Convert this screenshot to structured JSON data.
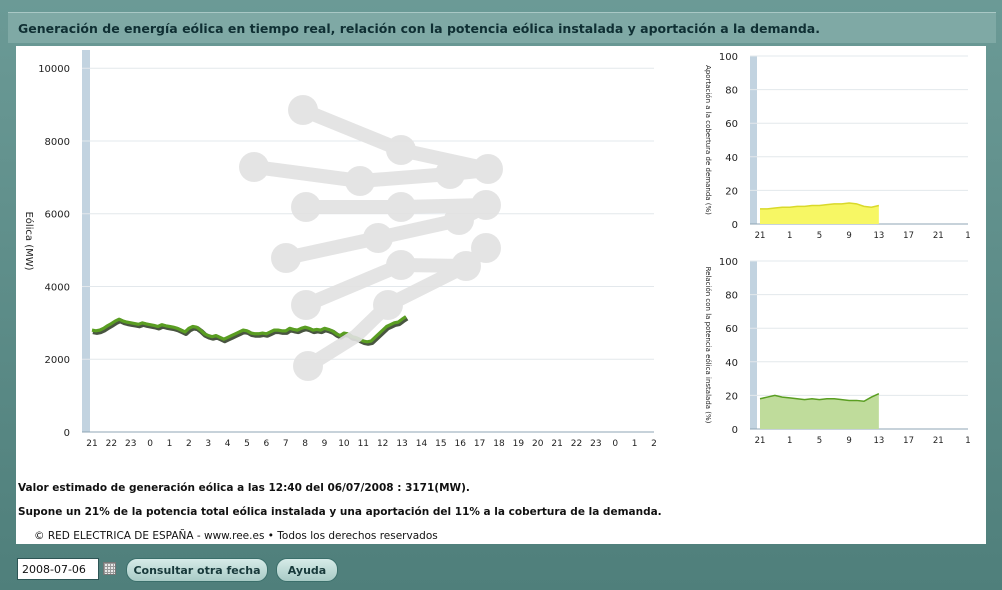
{
  "header": {
    "title": "Generación de energía eólica en tiempo real, relación con la potencia eólica instalada y aportación a la demanda."
  },
  "info": {
    "line1": "Valor estimado de generación eólica  a las  12:40 del 06/07/2008  :  3171(MW).",
    "line2": "Supone un 21% de la potencia total eólica instalada y una aportación del 11% a la cobertura de la demanda.",
    "copyright": "© RED ELECTRICA DE ESPAÑA - www.ree.es • Todos los derechos reservados"
  },
  "controls": {
    "date_value": "2008-07-06",
    "consult_label": "Consultar otra fecha",
    "help_label": "Ayuda"
  },
  "colors": {
    "main_line": "#5a9e22",
    "main_line_shadow": "#1c2a12",
    "yellow_fill": "#f7f764",
    "yellow_line": "#d9d92b",
    "green_fill": "#bfdc9b",
    "green_line": "#5a9e22",
    "axis_band": "#c2d3e0"
  },
  "chart_data": [
    {
      "type": "line",
      "ylabel": "Eólica (MW)",
      "ylim": [
        0,
        10500
      ],
      "yticks": [
        0,
        2000,
        4000,
        6000,
        8000,
        10000
      ],
      "xticks": [
        "21",
        "22",
        "23",
        "0",
        "1",
        "2",
        "3",
        "4",
        "5",
        "6",
        "7",
        "8",
        "9",
        "10",
        "11",
        "12",
        "13",
        "14",
        "15",
        "16",
        "17",
        "18",
        "19",
        "20",
        "21",
        "22",
        "23",
        "0",
        "1",
        "2"
      ],
      "grid": true,
      "series": [
        {
          "x": [
            0,
            0.2,
            0.4,
            0.6,
            0.8,
            1.0,
            1.2,
            1.4,
            1.6,
            1.8,
            2.0,
            2.2,
            2.4,
            2.6,
            2.8,
            3.0,
            3.2,
            3.4,
            3.6,
            3.8,
            4.0,
            4.2,
            4.4,
            4.6,
            4.8,
            5.0,
            5.2,
            5.4,
            5.6,
            5.8,
            6.0,
            6.2,
            6.4,
            6.6,
            6.8,
            7.0,
            7.2,
            7.4,
            7.6,
            7.8,
            8.0,
            8.2,
            8.4,
            8.6,
            8.8,
            9.0,
            9.2,
            9.4,
            9.6,
            9.8,
            10.0,
            10.2,
            10.4,
            10.6,
            10.8,
            11.0,
            11.2,
            11.4,
            11.6,
            11.8,
            12.0,
            12.2,
            12.4,
            12.6,
            12.8,
            13.0,
            13.2,
            13.4,
            13.6,
            13.8,
            14.0,
            14.2,
            14.4,
            14.6,
            14.8,
            15.0,
            15.2,
            15.4,
            15.6,
            15.8,
            16.0,
            16.2
          ],
          "values": [
            2800,
            2780,
            2800,
            2850,
            2920,
            2980,
            3050,
            3100,
            3050,
            3020,
            3000,
            2980,
            2960,
            3000,
            2970,
            2950,
            2930,
            2900,
            2950,
            2920,
            2900,
            2880,
            2850,
            2800,
            2750,
            2850,
            2900,
            2880,
            2800,
            2700,
            2650,
            2620,
            2650,
            2600,
            2550,
            2600,
            2650,
            2700,
            2750,
            2800,
            2780,
            2720,
            2700,
            2700,
            2720,
            2700,
            2750,
            2800,
            2800,
            2780,
            2780,
            2850,
            2820,
            2800,
            2850,
            2880,
            2850,
            2800,
            2820,
            2800,
            2850,
            2820,
            2780,
            2700,
            2650,
            2720,
            2700,
            2620,
            2600,
            2550,
            2500,
            2480,
            2500,
            2600,
            2700,
            2800,
            2900,
            2950,
            3000,
            3020,
            3100,
            3171
          ]
        }
      ]
    },
    {
      "type": "area",
      "ylabel": "Aportación a la cobertura de demanda (%)",
      "ylim": [
        0,
        100
      ],
      "yticks": [
        0,
        20,
        40,
        60,
        80,
        100
      ],
      "xticks": [
        "21",
        "1",
        "5",
        "9",
        "13",
        "17",
        "21",
        "1"
      ],
      "grid": true,
      "series": [
        {
          "x": [
            0,
            1,
            2,
            3,
            4,
            5,
            6,
            7,
            8,
            9,
            10,
            11,
            12,
            13,
            14,
            15,
            16
          ],
          "values": [
            9,
            9,
            9.5,
            10,
            10,
            10.5,
            10.5,
            11,
            11,
            11.5,
            12,
            12,
            12.5,
            12,
            10.5,
            10,
            11
          ]
        }
      ]
    },
    {
      "type": "area",
      "ylabel": "Relación con la potencia eólica instalada (%)",
      "ylim": [
        0,
        100
      ],
      "yticks": [
        0,
        20,
        40,
        60,
        80,
        100
      ],
      "xticks": [
        "21",
        "1",
        "5",
        "9",
        "13",
        "17",
        "21",
        "1"
      ],
      "grid": true,
      "series": [
        {
          "x": [
            0,
            1,
            2,
            3,
            4,
            5,
            6,
            7,
            8,
            9,
            10,
            11,
            12,
            13,
            14,
            15,
            16
          ],
          "values": [
            18,
            19,
            20,
            19,
            18.5,
            18,
            17.5,
            18,
            17.5,
            18,
            18,
            17.5,
            17,
            17,
            16.5,
            19,
            21
          ]
        }
      ]
    }
  ]
}
